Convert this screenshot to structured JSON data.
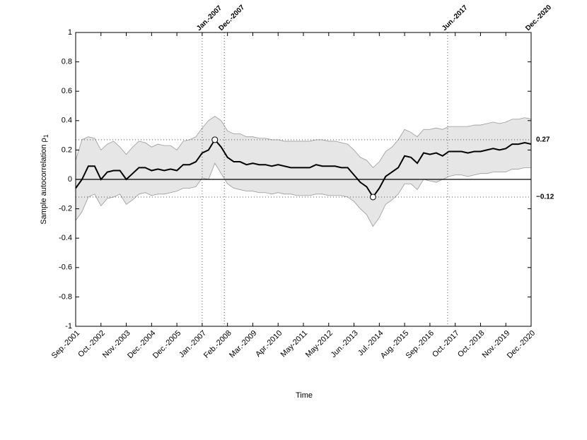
{
  "chart_data": {
    "type": "line",
    "xlabel": "Time",
    "ylabel": "Sample autocorrelation ρ",
    "ylabel_sub": "1",
    "categories": [
      "Sep.-2001",
      null,
      null,
      null,
      "Oct.-2002",
      null,
      null,
      null,
      "Nov.-2003",
      null,
      null,
      null,
      "Dec.-2004",
      null,
      null,
      null,
      "Dec.-2005",
      null,
      null,
      null,
      "Jan.-2007",
      null,
      null,
      null,
      "Feb.-2008",
      null,
      null,
      null,
      "Mar.-2009",
      null,
      null,
      null,
      "Apr.-2010",
      null,
      null,
      null,
      "May-2011",
      null,
      null,
      null,
      "May-2012",
      null,
      null,
      null,
      "Jun.-2013",
      null,
      null,
      null,
      "Jul.-2014",
      null,
      null,
      null,
      "Aug.-2015",
      null,
      null,
      null,
      "Sep.-2016",
      null,
      null,
      null,
      "Oct.-2017",
      null,
      null,
      null,
      "Oct.-2018",
      null,
      null,
      null,
      "Nov.-2019",
      null,
      null,
      null,
      "Dec.-2020"
    ],
    "values": [
      -0.06,
      0.0,
      0.09,
      0.09,
      0.0,
      0.05,
      0.06,
      0.06,
      0.0,
      0.04,
      0.08,
      0.08,
      0.06,
      0.07,
      0.06,
      0.07,
      0.06,
      0.1,
      0.1,
      0.12,
      0.18,
      0.2,
      0.27,
      0.22,
      0.15,
      0.12,
      0.12,
      0.1,
      0.11,
      0.1,
      0.1,
      0.09,
      0.1,
      0.09,
      0.08,
      0.08,
      0.08,
      0.08,
      0.1,
      0.09,
      0.09,
      0.09,
      0.08,
      0.08,
      0.03,
      -0.02,
      -0.05,
      -0.12,
      -0.06,
      0.02,
      0.05,
      0.08,
      0.16,
      0.15,
      0.11,
      0.18,
      0.17,
      0.18,
      0.16,
      0.19,
      0.19,
      0.19,
      0.18,
      0.19,
      0.19,
      0.2,
      0.21,
      0.2,
      0.21,
      0.24,
      0.24,
      0.25,
      0.24
    ],
    "band_upper": [
      0.13,
      0.27,
      0.29,
      0.28,
      0.2,
      0.24,
      0.26,
      0.22,
      0.17,
      0.22,
      0.26,
      0.25,
      0.22,
      0.24,
      0.23,
      0.23,
      0.2,
      0.26,
      0.27,
      0.29,
      0.35,
      0.4,
      0.43,
      0.4,
      0.33,
      0.31,
      0.31,
      0.29,
      0.29,
      0.28,
      0.28,
      0.27,
      0.27,
      0.26,
      0.26,
      0.26,
      0.26,
      0.26,
      0.27,
      0.27,
      0.26,
      0.26,
      0.25,
      0.24,
      0.2,
      0.15,
      0.13,
      0.08,
      0.12,
      0.19,
      0.22,
      0.27,
      0.34,
      0.32,
      0.29,
      0.34,
      0.34,
      0.35,
      0.34,
      0.36,
      0.36,
      0.36,
      0.36,
      0.37,
      0.37,
      0.38,
      0.39,
      0.38,
      0.39,
      0.41,
      0.41,
      0.42,
      0.41
    ],
    "band_lower": [
      -0.28,
      -0.22,
      -0.12,
      -0.1,
      -0.18,
      -0.13,
      -0.12,
      -0.1,
      -0.17,
      -0.14,
      -0.1,
      -0.09,
      -0.11,
      -0.1,
      -0.1,
      -0.09,
      -0.08,
      -0.06,
      -0.06,
      -0.05,
      0.01,
      0.0,
      0.11,
      0.04,
      -0.03,
      -0.06,
      -0.07,
      -0.08,
      -0.08,
      -0.09,
      -0.09,
      -0.1,
      -0.09,
      -0.1,
      -0.1,
      -0.11,
      -0.11,
      -0.11,
      -0.1,
      -0.1,
      -0.11,
      -0.11,
      -0.11,
      -0.12,
      -0.15,
      -0.2,
      -0.24,
      -0.32,
      -0.26,
      -0.17,
      -0.14,
      -0.1,
      -0.03,
      -0.03,
      -0.07,
      0.0,
      -0.01,
      -0.02,
      0.0,
      0.02,
      0.03,
      0.03,
      0.02,
      0.03,
      0.04,
      0.04,
      0.05,
      0.05,
      0.05,
      0.07,
      0.07,
      0.08,
      0.08
    ],
    "color": "#000000",
    "band_color": "#e6e6e6",
    "ylim": [
      -1,
      1
    ],
    "yticks": [
      -1,
      -0.8,
      -0.6,
      -0.4,
      -0.2,
      0,
      0.2,
      0.4,
      0.6,
      0.8,
      1
    ],
    "markers": [
      22,
      47
    ],
    "hlines": [
      0.27,
      {
        "value": -0.12,
        "label": "−0.12"
      }
    ],
    "vlines": [
      {
        "index": 20,
        "label": "Jan.-2007"
      },
      {
        "index": 23.5,
        "label": "Dec.-2007"
      },
      {
        "index": 58.8,
        "label": "Jun.-2017"
      },
      {
        "index": 72,
        "label": "Dec.-2020"
      }
    ]
  }
}
